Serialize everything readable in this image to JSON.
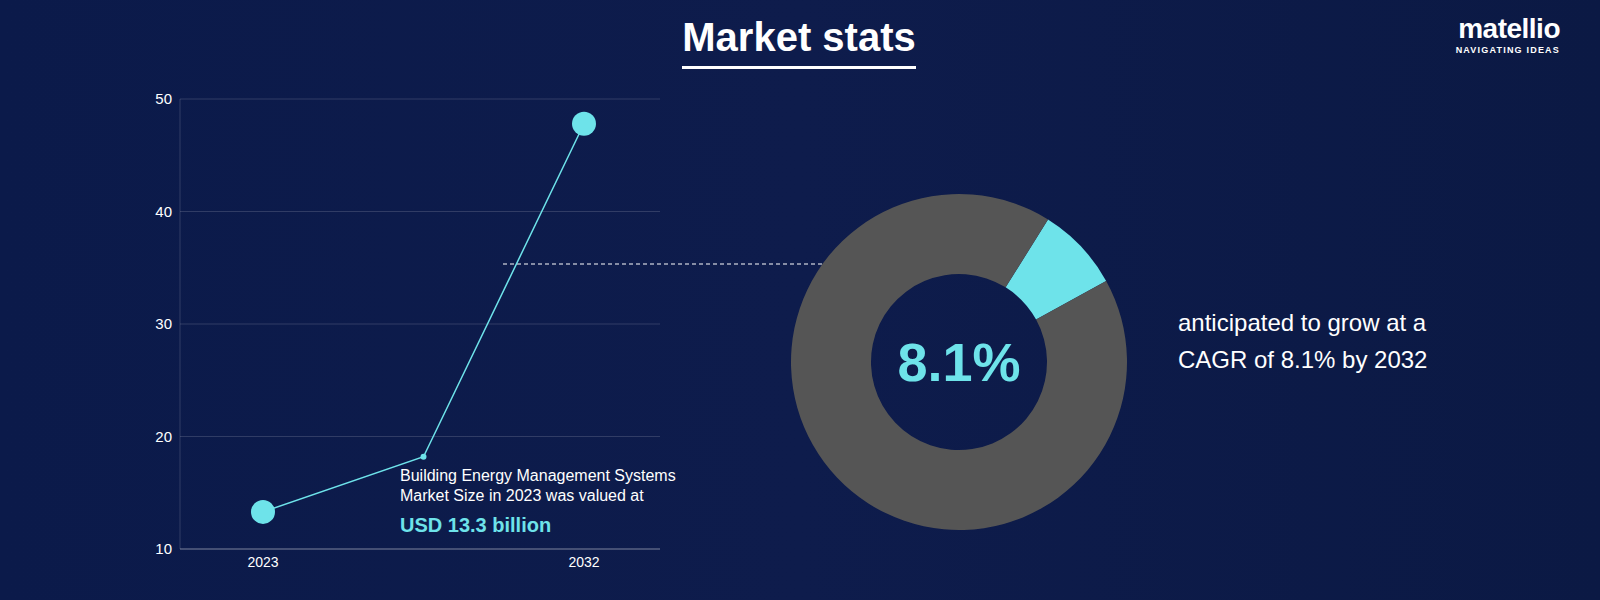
{
  "header": {
    "title": "Market stats",
    "brand": "matellio",
    "tagline": "NAVIGATING IDEAS"
  },
  "chart_data": [
    {
      "type": "line",
      "categories": [
        "2023",
        null,
        "2032"
      ],
      "values": [
        13.3,
        18.2,
        47.8
      ],
      "color": "#6ee3ea",
      "ylim": [
        10,
        50
      ],
      "yticks": [
        10,
        20,
        30,
        40,
        50
      ],
      "grid": true,
      "marker": "circle",
      "annotation": [
        "Building Energy Management Systems",
        "Market Size in 2023 was valued at"
      ],
      "highlight": "USD 13.3 billion"
    },
    {
      "type": "pie",
      "values": [
        8.1,
        91.9
      ],
      "colors": [
        "#6ee3ea",
        "#555555"
      ],
      "center_label": "8.1%",
      "annotation": [
        "anticipated to grow at a",
        "CAGR of 8.1% by 2032"
      ]
    }
  ]
}
